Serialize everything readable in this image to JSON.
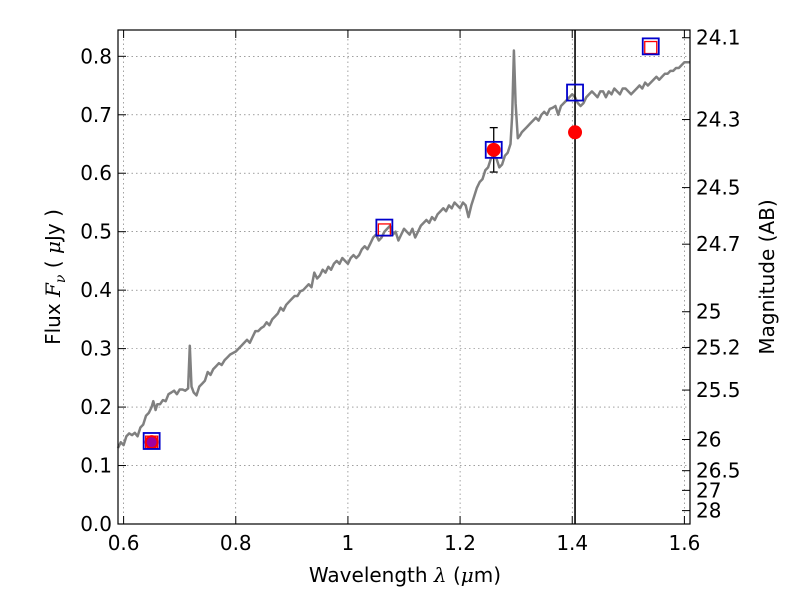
{
  "chart_data": {
    "type": "line",
    "xlabel": {
      "prefix": "Wavelength ",
      "symbol": "λ",
      "unit_open": " (",
      "unit_mu": "μ",
      "unit_rest": "m)"
    },
    "ylabel": {
      "prefix": "Flux ",
      "symbol": "F",
      "subscript": "ν",
      "unit_open": " ( ",
      "unit_mu": "μ",
      "unit_rest": "Jy )"
    },
    "y2label": "Magnitude (AB)",
    "xlim": [
      0.59,
      1.61
    ],
    "ylim": [
      0.0,
      0.845
    ],
    "x_ticks": [
      {
        "value": 0.6,
        "label": "0.6"
      },
      {
        "value": 0.8,
        "label": "0.8"
      },
      {
        "value": 1.0,
        "label": "1"
      },
      {
        "value": 1.2,
        "label": "1.2"
      },
      {
        "value": 1.4,
        "label": "1.4"
      },
      {
        "value": 1.6,
        "label": "1.6"
      }
    ],
    "y_ticks": [
      {
        "value": 0.0,
        "label": "0.0"
      },
      {
        "value": 0.1,
        "label": "0.1"
      },
      {
        "value": 0.2,
        "label": "0.2"
      },
      {
        "value": 0.3,
        "label": "0.3"
      },
      {
        "value": 0.4,
        "label": "0.4"
      },
      {
        "value": 0.5,
        "label": "0.5"
      },
      {
        "value": 0.6,
        "label": "0.6"
      },
      {
        "value": 0.7,
        "label": "0.7"
      },
      {
        "value": 0.8,
        "label": "0.8"
      }
    ],
    "y2_ticks": [
      {
        "value": 24.1,
        "label": "24.1"
      },
      {
        "value": 24.3,
        "label": "24.3"
      },
      {
        "value": 24.5,
        "label": "24.5"
      },
      {
        "value": 24.7,
        "label": "24.7"
      },
      {
        "value": 25.0,
        "label": "25"
      },
      {
        "value": 25.2,
        "label": "25.2"
      },
      {
        "value": 25.5,
        "label": "25.5"
      },
      {
        "value": 26.0,
        "label": "26"
      },
      {
        "value": 26.5,
        "label": "26.5"
      },
      {
        "value": 27.0,
        "label": "27"
      },
      {
        "value": 28.0,
        "label": "28"
      }
    ],
    "y2_zero_point": 23.9,
    "grid": true,
    "series": [
      {
        "kind": "spectrum",
        "color": "#808080",
        "points": [
          [
            0.59,
            0.13
          ],
          [
            0.595,
            0.14
          ],
          [
            0.6,
            0.135
          ],
          [
            0.605,
            0.15
          ],
          [
            0.61,
            0.155
          ],
          [
            0.615,
            0.152
          ],
          [
            0.62,
            0.156
          ],
          [
            0.625,
            0.15
          ],
          [
            0.63,
            0.165
          ],
          [
            0.635,
            0.17
          ],
          [
            0.64,
            0.185
          ],
          [
            0.645,
            0.19
          ],
          [
            0.65,
            0.2
          ],
          [
            0.653,
            0.21
          ],
          [
            0.657,
            0.195
          ],
          [
            0.66,
            0.205
          ],
          [
            0.665,
            0.205
          ],
          [
            0.67,
            0.212
          ],
          [
            0.675,
            0.21
          ],
          [
            0.68,
            0.222
          ],
          [
            0.685,
            0.225
          ],
          [
            0.69,
            0.228
          ],
          [
            0.695,
            0.222
          ],
          [
            0.7,
            0.23
          ],
          [
            0.705,
            0.23
          ],
          [
            0.71,
            0.228
          ],
          [
            0.715,
            0.232
          ],
          [
            0.718,
            0.305
          ],
          [
            0.721,
            0.235
          ],
          [
            0.725,
            0.225
          ],
          [
            0.73,
            0.22
          ],
          [
            0.735,
            0.235
          ],
          [
            0.74,
            0.24
          ],
          [
            0.745,
            0.245
          ],
          [
            0.75,
            0.26
          ],
          [
            0.755,
            0.255
          ],
          [
            0.76,
            0.265
          ],
          [
            0.765,
            0.27
          ],
          [
            0.77,
            0.275
          ],
          [
            0.775,
            0.272
          ],
          [
            0.78,
            0.28
          ],
          [
            0.785,
            0.285
          ],
          [
            0.79,
            0.29
          ],
          [
            0.8,
            0.295
          ],
          [
            0.81,
            0.305
          ],
          [
            0.815,
            0.31
          ],
          [
            0.82,
            0.315
          ],
          [
            0.825,
            0.31
          ],
          [
            0.83,
            0.32
          ],
          [
            0.835,
            0.33
          ],
          [
            0.84,
            0.33
          ],
          [
            0.845,
            0.335
          ],
          [
            0.85,
            0.338
          ],
          [
            0.855,
            0.345
          ],
          [
            0.86,
            0.34
          ],
          [
            0.865,
            0.35
          ],
          [
            0.87,
            0.355
          ],
          [
            0.875,
            0.36
          ],
          [
            0.88,
            0.37
          ],
          [
            0.885,
            0.365
          ],
          [
            0.89,
            0.375
          ],
          [
            0.895,
            0.38
          ],
          [
            0.9,
            0.385
          ],
          [
            0.905,
            0.39
          ],
          [
            0.91,
            0.39
          ],
          [
            0.915,
            0.398
          ],
          [
            0.92,
            0.4
          ],
          [
            0.925,
            0.405
          ],
          [
            0.93,
            0.41
          ],
          [
            0.935,
            0.405
          ],
          [
            0.94,
            0.43
          ],
          [
            0.945,
            0.42
          ],
          [
            0.95,
            0.425
          ],
          [
            0.955,
            0.435
          ],
          [
            0.96,
            0.43
          ],
          [
            0.965,
            0.44
          ],
          [
            0.97,
            0.435
          ],
          [
            0.975,
            0.445
          ],
          [
            0.98,
            0.45
          ],
          [
            0.985,
            0.445
          ],
          [
            0.99,
            0.455
          ],
          [
            0.995,
            0.45
          ],
          [
            1.0,
            0.445
          ],
          [
            1.005,
            0.455
          ],
          [
            1.01,
            0.46
          ],
          [
            1.015,
            0.455
          ],
          [
            1.02,
            0.46
          ],
          [
            1.025,
            0.47
          ],
          [
            1.03,
            0.475
          ],
          [
            1.035,
            0.47
          ],
          [
            1.04,
            0.48
          ],
          [
            1.045,
            0.49
          ],
          [
            1.05,
            0.495
          ],
          [
            1.055,
            0.485
          ],
          [
            1.06,
            0.49
          ],
          [
            1.065,
            0.5
          ],
          [
            1.07,
            0.505
          ],
          [
            1.075,
            0.51
          ],
          [
            1.08,
            0.495
          ],
          [
            1.085,
            0.5
          ],
          [
            1.09,
            0.485
          ],
          [
            1.095,
            0.495
          ],
          [
            1.1,
            0.505
          ],
          [
            1.105,
            0.5
          ],
          [
            1.11,
            0.495
          ],
          [
            1.115,
            0.505
          ],
          [
            1.12,
            0.49
          ],
          [
            1.125,
            0.5
          ],
          [
            1.13,
            0.51
          ],
          [
            1.135,
            0.515
          ],
          [
            1.14,
            0.52
          ],
          [
            1.145,
            0.515
          ],
          [
            1.15,
            0.525
          ],
          [
            1.155,
            0.52
          ],
          [
            1.16,
            0.53
          ],
          [
            1.165,
            0.535
          ],
          [
            1.17,
            0.54
          ],
          [
            1.175,
            0.535
          ],
          [
            1.18,
            0.545
          ],
          [
            1.185,
            0.54
          ],
          [
            1.19,
            0.55
          ],
          [
            1.195,
            0.545
          ],
          [
            1.2,
            0.54
          ],
          [
            1.205,
            0.55
          ],
          [
            1.21,
            0.545
          ],
          [
            1.215,
            0.525
          ],
          [
            1.22,
            0.545
          ],
          [
            1.225,
            0.56
          ],
          [
            1.23,
            0.575
          ],
          [
            1.235,
            0.585
          ],
          [
            1.24,
            0.59
          ],
          [
            1.245,
            0.605
          ],
          [
            1.25,
            0.61
          ],
          [
            1.255,
            0.625
          ],
          [
            1.26,
            0.63
          ],
          [
            1.265,
            0.625
          ],
          [
            1.27,
            0.61
          ],
          [
            1.275,
            0.615
          ],
          [
            1.28,
            0.63
          ],
          [
            1.285,
            0.635
          ],
          [
            1.29,
            0.65
          ],
          [
            1.293,
            0.7
          ],
          [
            1.296,
            0.81
          ],
          [
            1.299,
            0.72
          ],
          [
            1.303,
            0.66
          ],
          [
            1.307,
            0.665
          ],
          [
            1.31,
            0.67
          ],
          [
            1.315,
            0.675
          ],
          [
            1.32,
            0.68
          ],
          [
            1.325,
            0.685
          ],
          [
            1.33,
            0.69
          ],
          [
            1.335,
            0.695
          ],
          [
            1.34,
            0.69
          ],
          [
            1.345,
            0.7
          ],
          [
            1.35,
            0.705
          ],
          [
            1.355,
            0.7
          ],
          [
            1.36,
            0.71
          ],
          [
            1.365,
            0.712
          ],
          [
            1.37,
            0.715
          ],
          [
            1.375,
            0.7
          ],
          [
            1.38,
            0.715
          ],
          [
            1.385,
            0.72
          ],
          [
            1.39,
            0.725
          ],
          [
            1.395,
            0.73
          ],
          [
            1.4,
            0.735
          ],
          [
            1.405,
            0.73
          ],
          [
            1.41,
            0.72
          ],
          [
            1.415,
            0.715
          ],
          [
            1.42,
            0.72
          ],
          [
            1.425,
            0.73
          ],
          [
            1.43,
            0.735
          ],
          [
            1.435,
            0.74
          ],
          [
            1.44,
            0.735
          ],
          [
            1.445,
            0.73
          ],
          [
            1.45,
            0.74
          ],
          [
            1.455,
            0.74
          ],
          [
            1.46,
            0.73
          ],
          [
            1.465,
            0.74
          ],
          [
            1.47,
            0.735
          ],
          [
            1.475,
            0.745
          ],
          [
            1.48,
            0.74
          ],
          [
            1.485,
            0.735
          ],
          [
            1.49,
            0.745
          ],
          [
            1.495,
            0.745
          ],
          [
            1.5,
            0.74
          ],
          [
            1.505,
            0.735
          ],
          [
            1.51,
            0.74
          ],
          [
            1.515,
            0.745
          ],
          [
            1.52,
            0.75
          ],
          [
            1.525,
            0.745
          ],
          [
            1.53,
            0.755
          ],
          [
            1.535,
            0.75
          ],
          [
            1.54,
            0.755
          ],
          [
            1.545,
            0.76
          ],
          [
            1.55,
            0.765
          ],
          [
            1.555,
            0.76
          ],
          [
            1.56,
            0.765
          ],
          [
            1.565,
            0.77
          ],
          [
            1.57,
            0.77
          ],
          [
            1.575,
            0.775
          ],
          [
            1.58,
            0.775
          ],
          [
            1.585,
            0.78
          ],
          [
            1.59,
            0.78
          ],
          [
            1.595,
            0.785
          ],
          [
            1.6,
            0.79
          ],
          [
            1.605,
            0.79
          ],
          [
            1.61,
            0.79
          ]
        ]
      },
      {
        "kind": "measured",
        "color": "#ff0000",
        "points": [
          {
            "x": 0.65,
            "y": 0.14,
            "err": 0.01
          },
          {
            "x": 1.26,
            "y": 0.64,
            "err": 0.038
          },
          {
            "x": 1.405,
            "y": 0.67
          }
        ]
      },
      {
        "kind": "model-blue-square",
        "color": "#0000cc",
        "points": [
          {
            "x": 0.65,
            "y": 0.142
          },
          {
            "x": 1.065,
            "y": 0.507
          },
          {
            "x": 1.26,
            "y": 0.64
          },
          {
            "x": 1.405,
            "y": 0.738
          },
          {
            "x": 1.54,
            "y": 0.817
          }
        ]
      },
      {
        "kind": "model-red-square",
        "color": "#ff0000",
        "points": [
          {
            "x": 0.65,
            "y": 0.14
          },
          {
            "x": 1.065,
            "y": 0.503
          },
          {
            "x": 1.54,
            "y": 0.815
          }
        ]
      }
    ],
    "vertical_line": {
      "x": 1.405,
      "color": "#000000"
    },
    "small_point": {
      "x": 0.65,
      "y": 0.14,
      "color": "#a000a0"
    }
  }
}
